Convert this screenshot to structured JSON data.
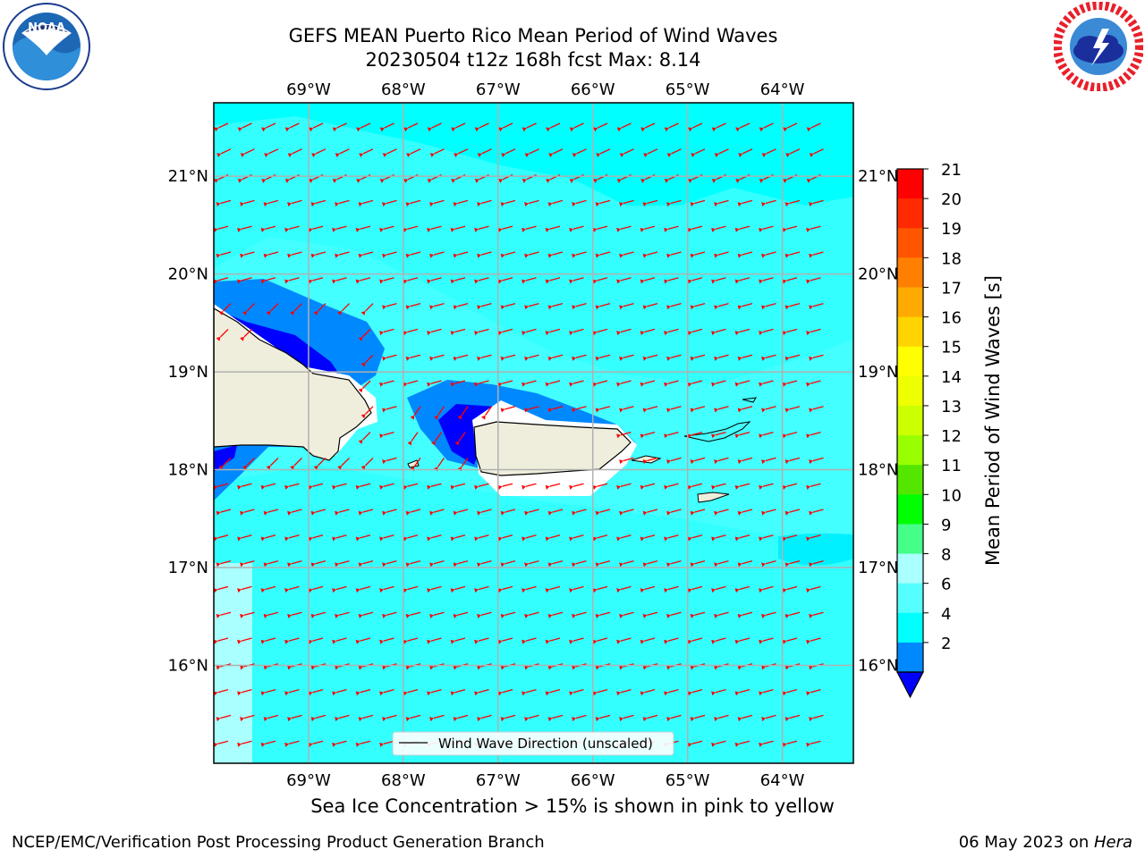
{
  "title": {
    "line1": "GEFS MEAN Puerto Rico Mean Period of Wind Waves",
    "line2": "20230504 t12z 168h fcst   Max: 8.14"
  },
  "logos": {
    "left": "noaa-logo",
    "left_text": "NOAA",
    "right": "nws-logo"
  },
  "map": {
    "lon_labels": [
      "69°W",
      "68°W",
      "67°W",
      "66°W",
      "65°W",
      "64°W"
    ],
    "lat_labels": [
      "21°N",
      "20°N",
      "19°N",
      "18°N",
      "17°N",
      "16°N"
    ],
    "lon_range": [
      -70.0,
      -63.25
    ],
    "lat_range": [
      15.0,
      21.75
    ],
    "grid": true,
    "ocean_color": "#00ffff",
    "land_color": "#efeedc",
    "arrow_color": "#ff0000",
    "legend_label": "Wind Wave Direction (unscaled)"
  },
  "colorbar": {
    "ticks": [
      "21",
      "20",
      "19",
      "18",
      "17",
      "16",
      "15",
      "14",
      "13",
      "12",
      "11",
      "10",
      "9",
      "8",
      "6",
      "4",
      "2"
    ],
    "colors": [
      "#ff0000",
      "#ff2a00",
      "#ff5500",
      "#ff8000",
      "#ffaa00",
      "#ffd400",
      "#ffff00",
      "#eeff00",
      "#ccff00",
      "#99ff00",
      "#55e600",
      "#00ff00",
      "#44ff88",
      "#aaffff",
      "#55ffff",
      "#00ffff",
      "#0088ff"
    ],
    "extend_color": "#0000ff",
    "label": "Mean Period of Wind Waves [s]"
  },
  "notes": {
    "ice": "Sea Ice Concentration > 15% is shown in pink to yellow"
  },
  "footer": {
    "left": "NCEP/EMC/Verification Post Processing Product Generation Branch",
    "right_date": "06 May 2023 on ",
    "right_host": "Hera"
  }
}
